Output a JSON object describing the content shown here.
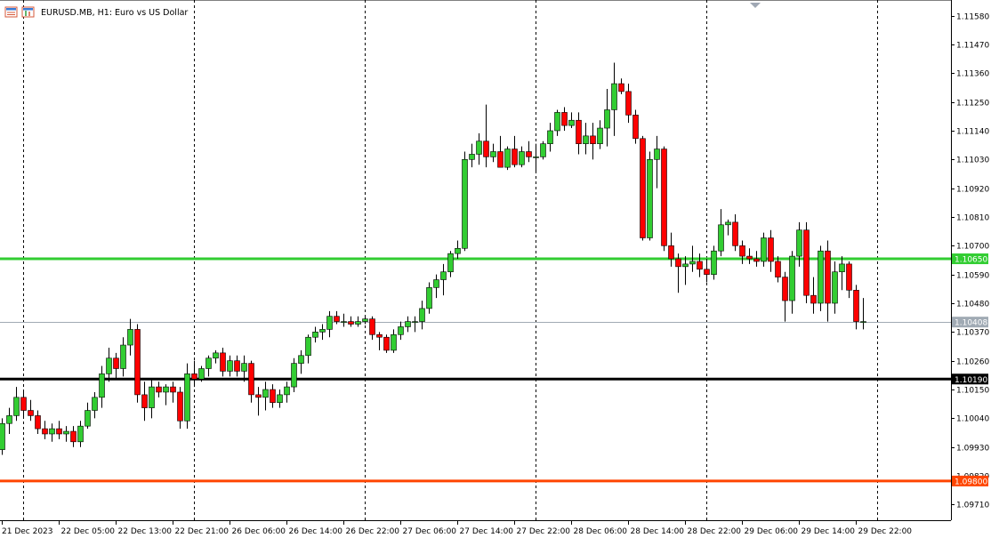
{
  "header": {
    "title": "EURUSD.MB, H1:  Euro vs US Dollar",
    "icon": "chart-window-icon"
  },
  "chart_data": {
    "type": "candlestick",
    "symbol": "EURUSD.MB",
    "timeframe": "H1",
    "description": "Euro vs US Dollar",
    "ylim": [
      1.0965,
      1.1164
    ],
    "price_ticks": [
      "1.11580",
      "1.11470",
      "1.11360",
      "1.11250",
      "1.11140",
      "1.11030",
      "1.10920",
      "1.10810",
      "1.10700",
      "1.10590",
      "1.10480",
      "1.10370",
      "1.10260",
      "1.10150",
      "1.10040",
      "1.09930",
      "1.09820",
      "1.09710"
    ],
    "time_labels": [
      {
        "label": "21 Dec 2023",
        "bar": 0
      },
      {
        "label": "22 Dec 05:00",
        "bar": 8
      },
      {
        "label": "22 Dec 13:00",
        "bar": 16
      },
      {
        "label": "22 Dec 21:00",
        "bar": 24
      },
      {
        "label": "26 Dec 06:00",
        "bar": 32
      },
      {
        "label": "26 Dec 14:00",
        "bar": 40
      },
      {
        "label": "26 Dec 22:00",
        "bar": 48
      },
      {
        "label": "27 Dec 06:00",
        "bar": 56
      },
      {
        "label": "27 Dec 14:00",
        "bar": 64
      },
      {
        "label": "27 Dec 22:00",
        "bar": 72
      },
      {
        "label": "28 Dec 06:00",
        "bar": 80
      },
      {
        "label": "28 Dec 14:00",
        "bar": 88
      },
      {
        "label": "28 Dec 22:00",
        "bar": 96
      },
      {
        "label": "29 Dec 06:00",
        "bar": 104
      },
      {
        "label": "29 Dec 14:00",
        "bar": 112
      },
      {
        "label": "29 Dec 22:00",
        "bar": 120
      }
    ],
    "separators": [
      3,
      27,
      51,
      75,
      99,
      123
    ],
    "horizontal_lines": [
      {
        "price": 1.1065,
        "label": "1.10650",
        "color": "#32cd32",
        "width": 3
      },
      {
        "price": 1.1019,
        "label": "1.10190",
        "color": "#000000",
        "width": 3
      },
      {
        "price": 1.098,
        "label": "1.09800",
        "color": "#ff4500",
        "width": 3
      }
    ],
    "current_price": {
      "price": 1.10408,
      "label": "1.10408",
      "color": "#a0aab4"
    },
    "colors": {
      "bull": "#32cd32",
      "bear": "#ff0000",
      "wick": "#000000",
      "grid": "#000000",
      "axis": "#000000"
    },
    "candles": [
      [
        1.0992,
        1.1004,
        1.099,
        1.1002
      ],
      [
        1.1002,
        1.1008,
        1.0998,
        1.1005
      ],
      [
        1.1005,
        1.1016,
        1.1003,
        1.1012
      ],
      [
        1.1012,
        1.1014,
        1.1004,
        1.1007
      ],
      [
        1.1007,
        1.1011,
        1.1003,
        1.1005
      ],
      [
        1.1005,
        1.1007,
        1.0998,
        1.1
      ],
      [
        1.1,
        1.1003,
        1.0996,
        1.0998
      ],
      [
        1.0998,
        1.1002,
        1.0995,
        1.1
      ],
      [
        1.1,
        1.1003,
        1.0996,
        1.0998
      ],
      [
        1.0998,
        1.1001,
        1.0995,
        1.0999
      ],
      [
        1.0999,
        1.1001,
        1.0993,
        1.0995
      ],
      [
        1.0995,
        1.1003,
        1.0993,
        1.1001
      ],
      [
        1.1001,
        1.101,
        1.1,
        1.1007
      ],
      [
        1.1007,
        1.1014,
        1.1004,
        1.1012
      ],
      [
        1.1012,
        1.1024,
        1.1008,
        1.1021
      ],
      [
        1.1021,
        1.1031,
        1.1018,
        1.1027
      ],
      [
        1.1027,
        1.1029,
        1.1019,
        1.1023
      ],
      [
        1.1023,
        1.1035,
        1.102,
        1.1032
      ],
      [
        1.1032,
        1.1042,
        1.1028,
        1.1038
      ],
      [
        1.1038,
        1.104,
        1.101,
        1.1013
      ],
      [
        1.1013,
        1.1018,
        1.1003,
        1.1008
      ],
      [
        1.1008,
        1.1019,
        1.1004,
        1.1016
      ],
      [
        1.1016,
        1.1018,
        1.1012,
        1.1014
      ],
      [
        1.1014,
        1.1017,
        1.1009,
        1.1016
      ],
      [
        1.1016,
        1.1018,
        1.101,
        1.1014
      ],
      [
        1.1014,
        1.1016,
        1.1,
        1.1003
      ],
      [
        1.1003,
        1.1025,
        1.1,
        1.1021
      ],
      [
        1.1021,
        1.1026,
        1.1016,
        1.1019
      ],
      [
        1.1019,
        1.1024,
        1.1018,
        1.1023
      ],
      [
        1.1023,
        1.1028,
        1.102,
        1.1027
      ],
      [
        1.1027,
        1.103,
        1.1025,
        1.1029
      ],
      [
        1.1029,
        1.1031,
        1.102,
        1.1022
      ],
      [
        1.1022,
        1.1028,
        1.102,
        1.1026
      ],
      [
        1.1026,
        1.1028,
        1.102,
        1.1022
      ],
      [
        1.1022,
        1.1028,
        1.1018,
        1.1025
      ],
      [
        1.1025,
        1.1026,
        1.101,
        1.1013
      ],
      [
        1.1013,
        1.1016,
        1.1005,
        1.1012
      ],
      [
        1.1012,
        1.1018,
        1.1007,
        1.1015
      ],
      [
        1.1015,
        1.1017,
        1.1008,
        1.101
      ],
      [
        1.101,
        1.1015,
        1.1008,
        1.1013
      ],
      [
        1.1013,
        1.1018,
        1.101,
        1.1016
      ],
      [
        1.1016,
        1.1027,
        1.1014,
        1.1025
      ],
      [
        1.1025,
        1.103,
        1.1021,
        1.1028
      ],
      [
        1.1028,
        1.1036,
        1.1025,
        1.1035
      ],
      [
        1.1035,
        1.1039,
        1.1033,
        1.1037
      ],
      [
        1.1037,
        1.104,
        1.1034,
        1.1038
      ],
      [
        1.1038,
        1.1045,
        1.1035,
        1.1043
      ],
      [
        1.1043,
        1.1045,
        1.104,
        1.1041
      ],
      [
        1.1041,
        1.1044,
        1.1039,
        1.1041
      ],
      [
        1.1041,
        1.1043,
        1.1039,
        1.104
      ],
      [
        1.104,
        1.1043,
        1.1039,
        1.1041
      ],
      [
        1.1041,
        1.1043,
        1.104,
        1.1042
      ],
      [
        1.1042,
        1.1043,
        1.1034,
        1.1036
      ],
      [
        1.1036,
        1.1037,
        1.103,
        1.1035
      ],
      [
        1.1035,
        1.1036,
        1.1029,
        1.103
      ],
      [
        1.103,
        1.1038,
        1.1029,
        1.1036
      ],
      [
        1.1036,
        1.1041,
        1.1034,
        1.1039
      ],
      [
        1.1039,
        1.1043,
        1.1037,
        1.1041
      ],
      [
        1.1041,
        1.1043,
        1.1037,
        1.1041
      ],
      [
        1.1041,
        1.1049,
        1.1038,
        1.1046
      ],
      [
        1.1046,
        1.1056,
        1.1044,
        1.1054
      ],
      [
        1.1054,
        1.1059,
        1.105,
        1.1057
      ],
      [
        1.1057,
        1.1063,
        1.1051,
        1.106
      ],
      [
        1.106,
        1.1068,
        1.1058,
        1.1067
      ],
      [
        1.1067,
        1.1072,
        1.1065,
        1.1069
      ],
      [
        1.1069,
        1.1106,
        1.1068,
        1.1103
      ],
      [
        1.1103,
        1.1109,
        1.11,
        1.1105
      ],
      [
        1.1105,
        1.1113,
        1.1101,
        1.111
      ],
      [
        1.111,
        1.1124,
        1.11,
        1.1104
      ],
      [
        1.1104,
        1.1109,
        1.1102,
        1.1106
      ],
      [
        1.1106,
        1.1112,
        1.11,
        1.11
      ],
      [
        1.11,
        1.1108,
        1.1099,
        1.1107
      ],
      [
        1.1107,
        1.1112,
        1.11,
        1.1101
      ],
      [
        1.1101,
        1.1108,
        1.11,
        1.1106
      ],
      [
        1.1106,
        1.111,
        1.1102,
        1.1104
      ],
      [
        1.1104,
        1.1109,
        1.1098,
        1.1104
      ],
      [
        1.1104,
        1.111,
        1.1103,
        1.1109
      ],
      [
        1.1109,
        1.1117,
        1.1106,
        1.1114
      ],
      [
        1.1114,
        1.1122,
        1.1112,
        1.1121
      ],
      [
        1.1121,
        1.1123,
        1.1114,
        1.1116
      ],
      [
        1.1116,
        1.1121,
        1.1115,
        1.1118
      ],
      [
        1.1118,
        1.1121,
        1.1105,
        1.1109
      ],
      [
        1.1109,
        1.1117,
        1.1105,
        1.1112
      ],
      [
        1.1112,
        1.1117,
        1.1103,
        1.1109
      ],
      [
        1.1109,
        1.1118,
        1.1107,
        1.1115
      ],
      [
        1.1115,
        1.113,
        1.1108,
        1.1122
      ],
      [
        1.1122,
        1.114,
        1.1112,
        1.1132
      ],
      [
        1.1132,
        1.1134,
        1.1128,
        1.1129
      ],
      [
        1.1129,
        1.1132,
        1.1117,
        1.112
      ],
      [
        1.112,
        1.1122,
        1.1109,
        1.1111
      ],
      [
        1.1111,
        1.1112,
        1.1072,
        1.1073
      ],
      [
        1.1073,
        1.1106,
        1.1072,
        1.1103
      ],
      [
        1.1103,
        1.1112,
        1.1092,
        1.1107
      ],
      [
        1.1107,
        1.1108,
        1.1068,
        1.107
      ],
      [
        1.107,
        1.1075,
        1.1062,
        1.1065
      ],
      [
        1.1065,
        1.1067,
        1.1052,
        1.1062
      ],
      [
        1.1062,
        1.1066,
        1.1055,
        1.1063
      ],
      [
        1.1063,
        1.107,
        1.106,
        1.1064
      ],
      [
        1.1064,
        1.1067,
        1.1058,
        1.1061
      ],
      [
        1.1061,
        1.1065,
        1.1056,
        1.1059
      ],
      [
        1.1059,
        1.107,
        1.1057,
        1.1068
      ],
      [
        1.1068,
        1.1084,
        1.1066,
        1.1078
      ],
      [
        1.1078,
        1.108,
        1.1074,
        1.1079
      ],
      [
        1.1079,
        1.1082,
        1.1068,
        1.107
      ],
      [
        1.107,
        1.1072,
        1.1063,
        1.1066
      ],
      [
        1.1066,
        1.1069,
        1.1063,
        1.1065
      ],
      [
        1.1065,
        1.1068,
        1.1062,
        1.1064
      ],
      [
        1.1064,
        1.1075,
        1.1062,
        1.1073
      ],
      [
        1.1073,
        1.1076,
        1.106,
        1.1064
      ],
      [
        1.1064,
        1.1066,
        1.1056,
        1.1058
      ],
      [
        1.1058,
        1.106,
        1.1041,
        1.1049
      ],
      [
        1.1049,
        1.1068,
        1.1044,
        1.1066
      ],
      [
        1.1066,
        1.1079,
        1.1062,
        1.1076
      ],
      [
        1.1076,
        1.1079,
        1.1048,
        1.1051
      ],
      [
        1.1051,
        1.1058,
        1.1044,
        1.1048
      ],
      [
        1.1048,
        1.107,
        1.1045,
        1.1068
      ],
      [
        1.1068,
        1.1072,
        1.1041,
        1.1048
      ],
      [
        1.1048,
        1.1064,
        1.1044,
        1.106
      ],
      [
        1.106,
        1.1066,
        1.1053,
        1.1063
      ],
      [
        1.1063,
        1.1064,
        1.105,
        1.1053
      ],
      [
        1.1053,
        1.1055,
        1.1038,
        1.1041
      ],
      [
        1.1041,
        1.105,
        1.1038,
        1.1041
      ]
    ]
  }
}
